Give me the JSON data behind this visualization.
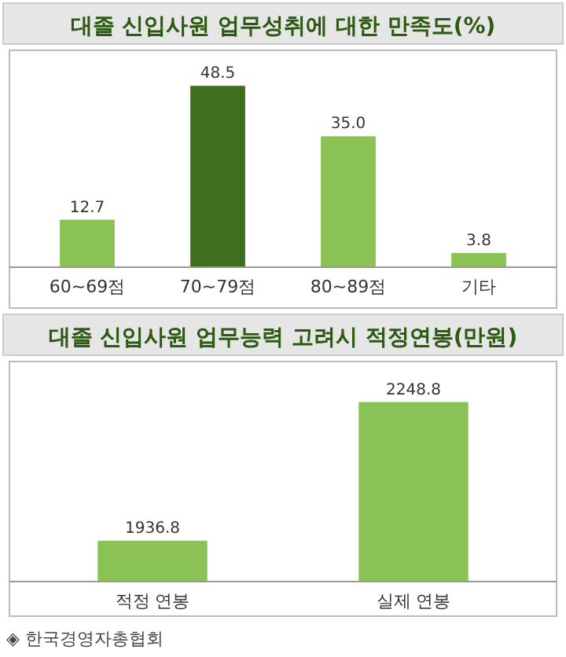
{
  "chart_data": [
    {
      "type": "bar",
      "title": "대졸 신입사원 업무성취에 대한 만족도(%)",
      "categories": [
        "60~69점",
        "70~79점",
        "80~89점",
        "기타"
      ],
      "values": [
        12.7,
        48.5,
        35.0,
        3.8
      ],
      "value_labels": [
        "12.7",
        "48.5",
        "35.0",
        "3.8"
      ],
      "colors": [
        "#8bc255",
        "#3f6e1e",
        "#8bc255",
        "#8bc255"
      ],
      "ylim": [
        0,
        58
      ],
      "tick_labels": "x"
    },
    {
      "type": "bar",
      "title": "대졸 신입사원 업무능력 고려시 적정연봉(만원)",
      "categories": [
        "적정 연봉",
        "실제 연봉"
      ],
      "values": [
        1936.8,
        2248.8
      ],
      "value_labels": [
        "1936.8",
        "2248.8"
      ],
      "color": "#8bc255",
      "ylim": [
        1845,
        2340
      ],
      "tick_labels": "x",
      "annotations": [
        "◈ 한국경영자총협회"
      ]
    }
  ]
}
